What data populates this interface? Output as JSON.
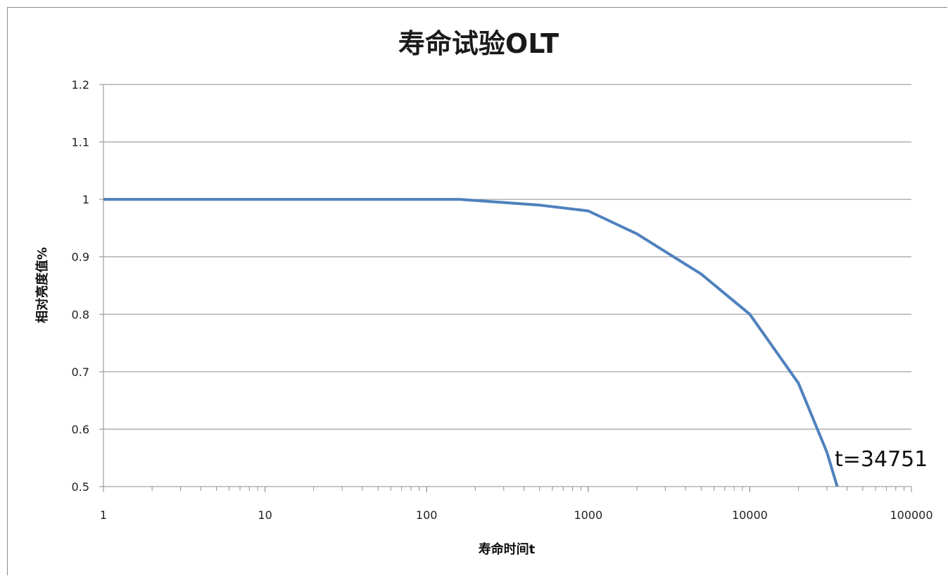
{
  "chart_data": {
    "type": "line",
    "title": "寿命试验OLT",
    "xlabel": "寿命时间t",
    "ylabel": "相对亮度值%",
    "x_scale": "log",
    "xlim": [
      1,
      100000
    ],
    "ylim": [
      0.5,
      1.2
    ],
    "x_ticks": [
      "1",
      "10",
      "100",
      "1000",
      "10000",
      "100000"
    ],
    "y_ticks": [
      "0.5",
      "0.6",
      "0.7",
      "0.8",
      "0.9",
      "1",
      "1.1",
      "1.2"
    ],
    "grid": true,
    "line_color": "#4f81bd",
    "series": [
      {
        "x": [
          1,
          10,
          100,
          160,
          500,
          1000,
          2000,
          5000,
          10000,
          20000,
          30000,
          34751
        ],
        "y": [
          1.0,
          1.0,
          1.0,
          1.0,
          0.99,
          0.98,
          0.94,
          0.87,
          0.8,
          0.68,
          0.56,
          0.5
        ]
      }
    ],
    "annotations": [
      {
        "text": "t=34751",
        "x": 34751,
        "y": 0.5
      }
    ]
  }
}
